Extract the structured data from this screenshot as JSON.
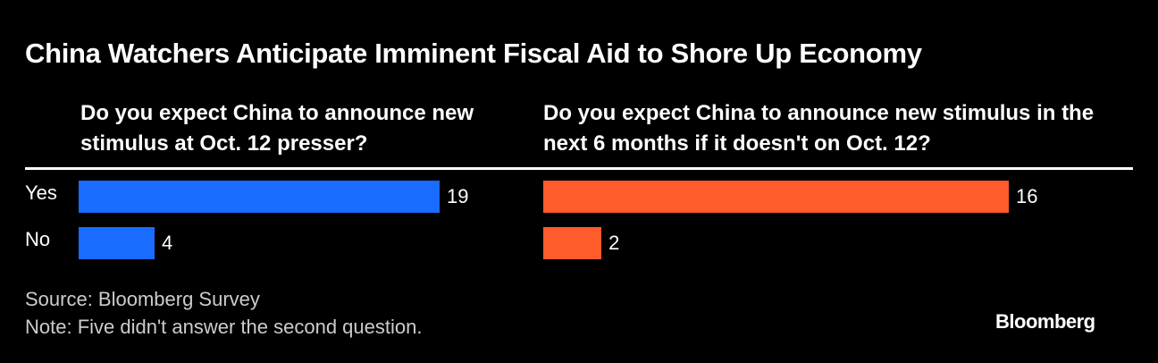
{
  "title": "China Watchers Anticipate Imminent Fiscal Aid to Shore Up Economy",
  "chart_data": [
    {
      "type": "bar",
      "title": "Do you expect China to announce new stimulus at Oct. 12 presser?",
      "categories": [
        "Yes",
        "No"
      ],
      "values": [
        19,
        4
      ],
      "color": "#1a6bff"
    },
    {
      "type": "bar",
      "title": "Do you expect China to announce new stimulus in the next 6 months if it doesn't on Oct. 12?",
      "values": [
        16,
        2
      ],
      "color": "#ff5b2b"
    }
  ],
  "source": "Source: Bloomberg Survey",
  "note": "Note: Five didn't answer the second question.",
  "logo": "Bloomberg"
}
